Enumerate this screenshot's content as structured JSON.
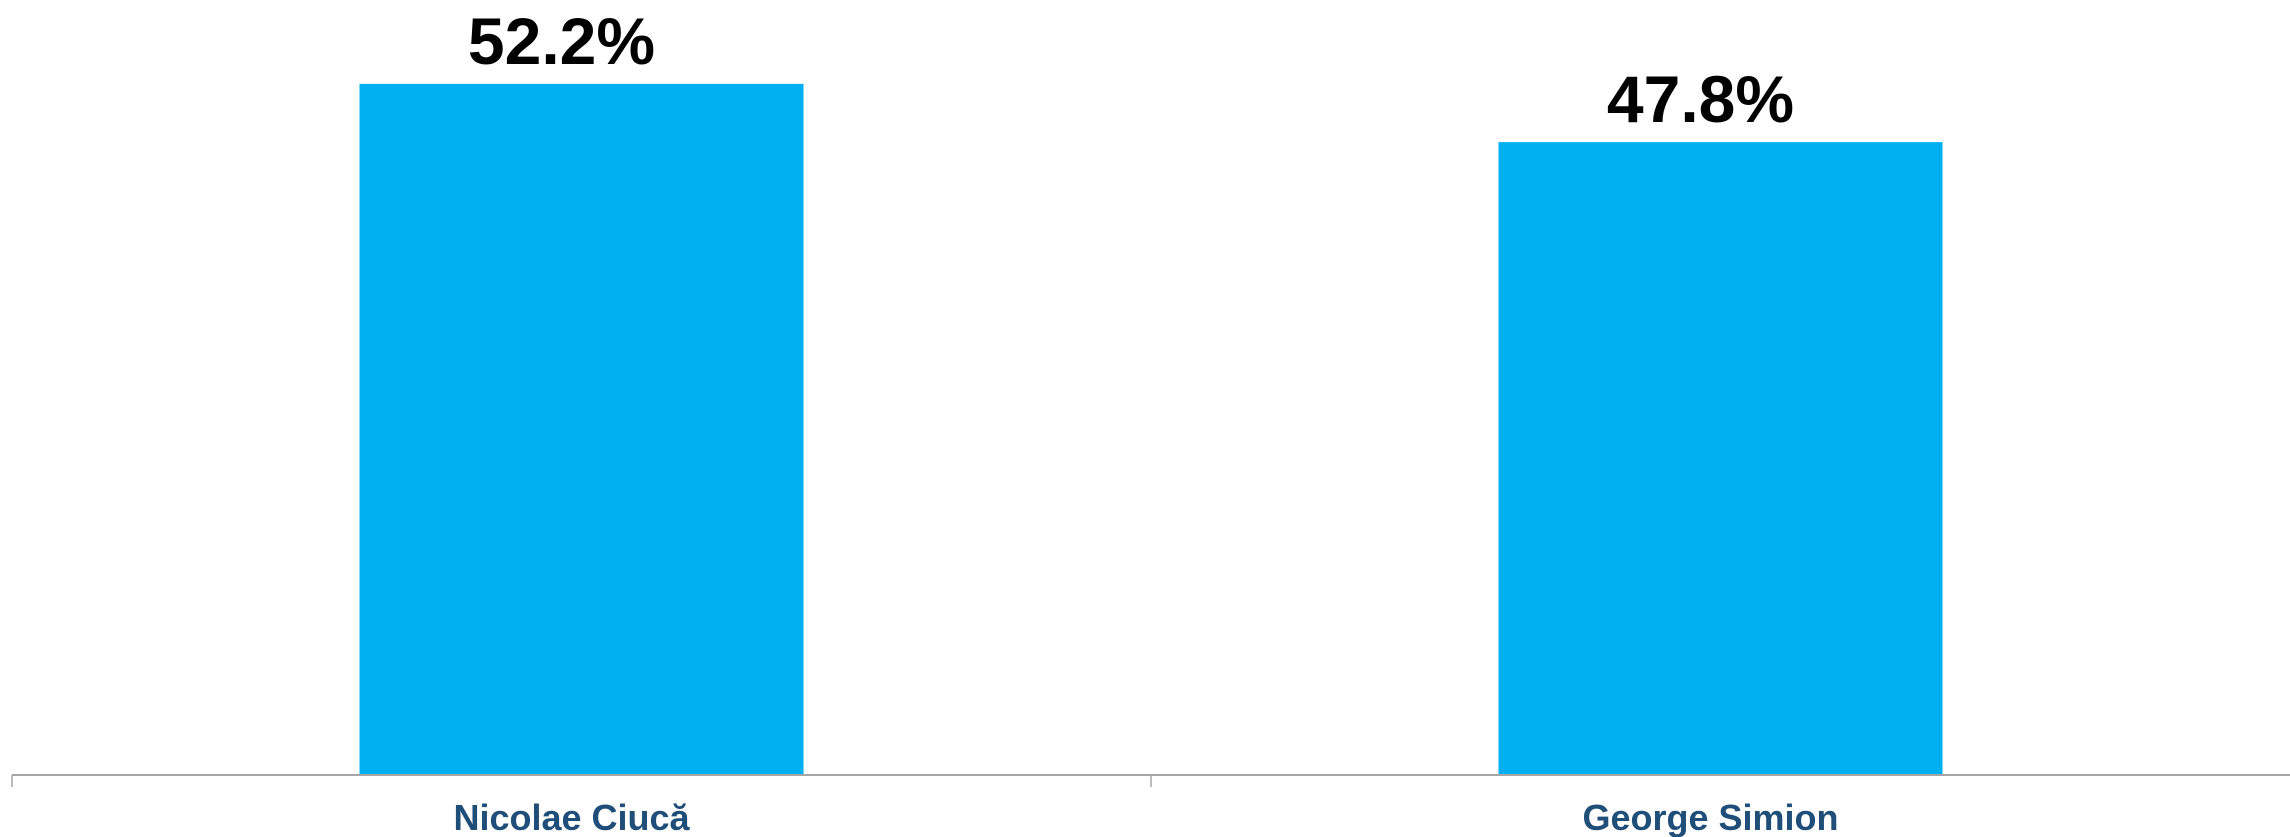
{
  "chart_data": {
    "type": "bar",
    "categories": [
      "Nicolae Ciucă",
      "George Simion"
    ],
    "values": [
      52.2,
      47.8
    ],
    "data_labels": [
      "52.2%",
      "47.8%"
    ],
    "title": "",
    "xlabel": "",
    "ylabel": "",
    "ylim": [
      0,
      60
    ],
    "grid": false,
    "legend": "none",
    "colors": {
      "bar": "#00B0F0",
      "axis": "#A6A6A6",
      "category_text": "#1F4E79",
      "value_text": "#000000"
    }
  }
}
